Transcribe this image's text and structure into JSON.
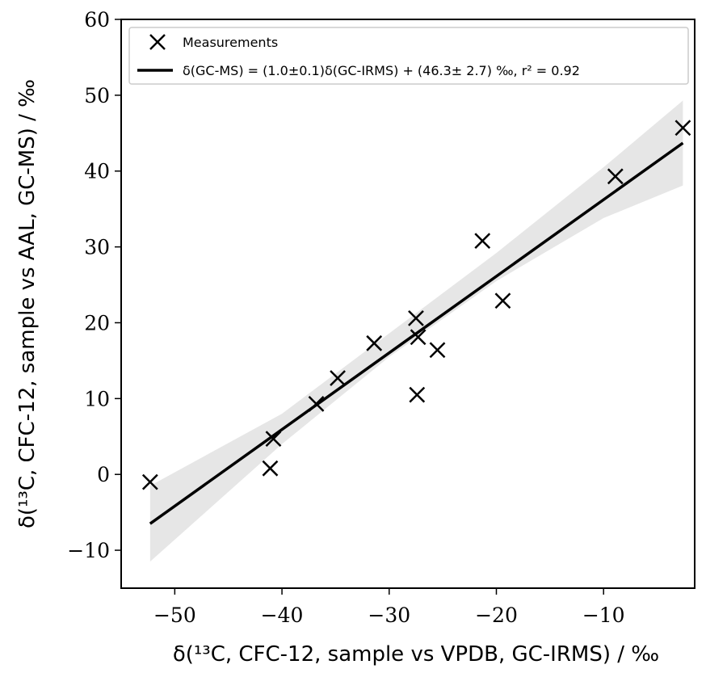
{
  "chart_data": {
    "type": "scatter",
    "title": "",
    "xlabel": "δ(¹³C, CFC-12, sample vs VPDB, GC-IRMS) / ‰",
    "ylabel": "δ(¹³C, CFC-12, sample vs AAL, GC-MS) / ‰",
    "xlim": [
      -55,
      -1.5
    ],
    "ylim": [
      -15,
      60
    ],
    "xticks": [
      -50,
      -40,
      -30,
      -20,
      -10
    ],
    "yticks": [
      -10,
      0,
      10,
      20,
      30,
      40,
      50,
      60
    ],
    "xtick_labels": [
      "−50",
      "−40",
      "−30",
      "−20",
      "−10"
    ],
    "ytick_labels": [
      "−10",
      "0",
      "10",
      "20",
      "30",
      "40",
      "50",
      "60"
    ],
    "grid": false,
    "legend_position": "top",
    "series": [
      {
        "name": "Measurements",
        "kind": "points",
        "marker": "x",
        "color": "#000000",
        "points": [
          {
            "x": -52.3,
            "y": -1.0
          },
          {
            "x": -41.1,
            "y": 0.8
          },
          {
            "x": -40.8,
            "y": 4.7
          },
          {
            "x": -36.8,
            "y": 9.3
          },
          {
            "x": -34.8,
            "y": 12.7
          },
          {
            "x": -31.4,
            "y": 17.3
          },
          {
            "x": -27.5,
            "y": 20.6
          },
          {
            "x": -27.3,
            "y": 18.1
          },
          {
            "x": -27.4,
            "y": 10.5
          },
          {
            "x": -25.5,
            "y": 16.4
          },
          {
            "x": -21.3,
            "y": 30.8
          },
          {
            "x": -19.4,
            "y": 22.9
          },
          {
            "x": -8.9,
            "y": 39.3
          },
          {
            "x": -2.6,
            "y": 45.7
          }
        ]
      },
      {
        "name": "δ(GC-MS) = (1.0±0.1)δ(GC-IRMS) + (46.3± 2.7) ‰, r² = 0.92",
        "kind": "fit",
        "color": "#000000",
        "line": [
          {
            "x": -52.3,
            "y": -6.5
          },
          {
            "x": -2.6,
            "y": 43.7
          }
        ],
        "band_color": "#e6e6e6",
        "band_upper": [
          {
            "x": -52.3,
            "y": -1.5
          },
          {
            "x": -40,
            "y": 8.0
          },
          {
            "x": -30,
            "y": 18.6
          },
          {
            "x": -20,
            "y": 29.2
          },
          {
            "x": -10,
            "y": 40.5
          },
          {
            "x": -2.6,
            "y": 49.3
          }
        ],
        "band_lower": [
          {
            "x": -52.3,
            "y": -11.5
          },
          {
            "x": -40,
            "y": 4.0
          },
          {
            "x": -30,
            "y": 15.5
          },
          {
            "x": -20,
            "y": 25.5
          },
          {
            "x": -10,
            "y": 33.8
          },
          {
            "x": -2.6,
            "y": 38.1
          }
        ]
      }
    ]
  }
}
